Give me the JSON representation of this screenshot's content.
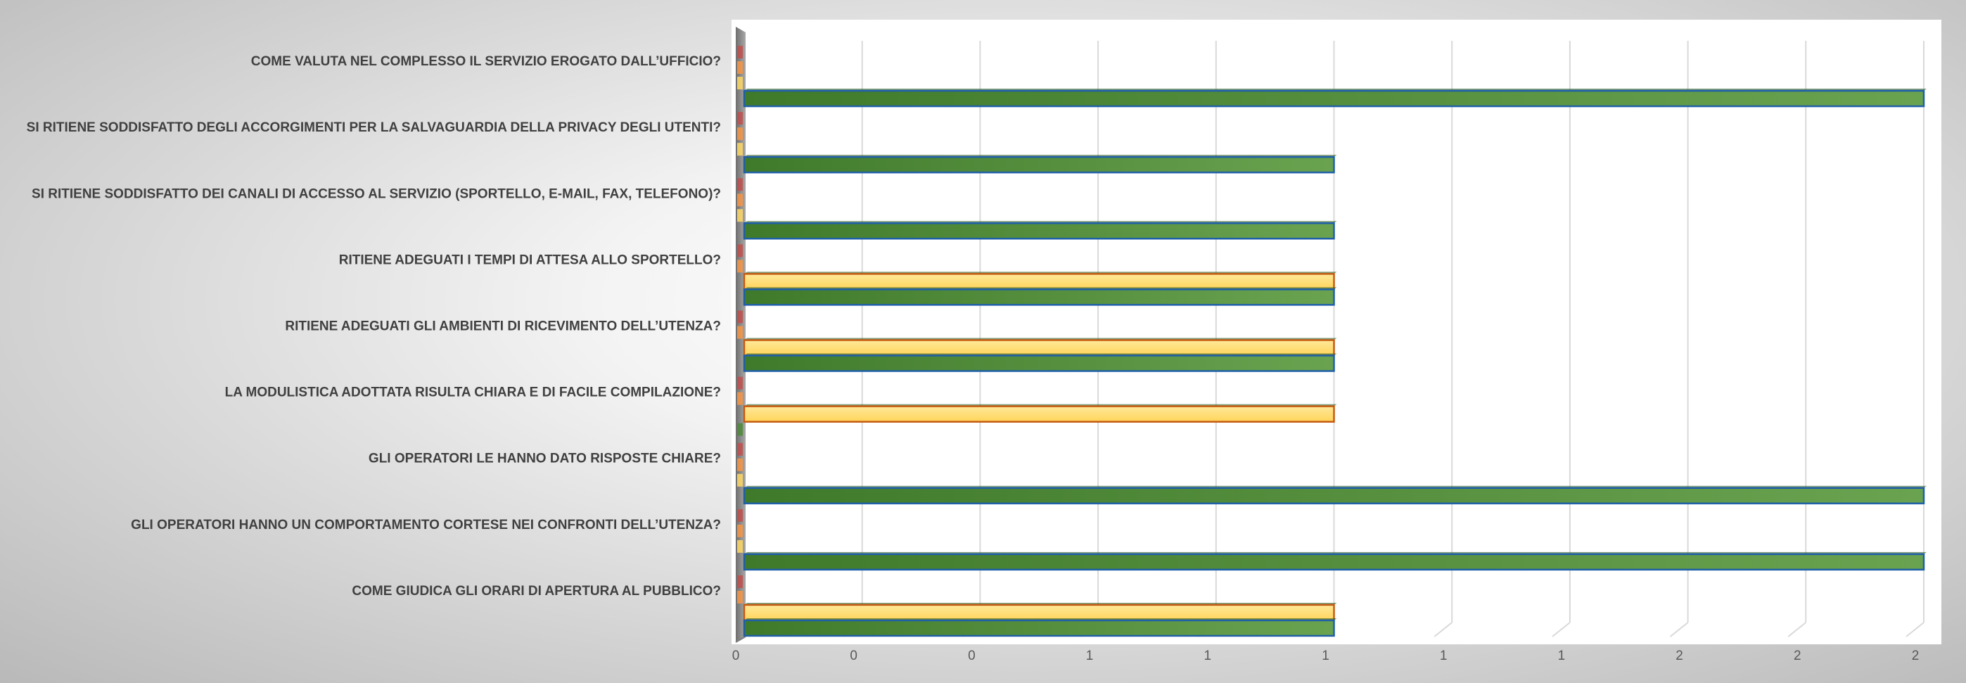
{
  "chart_data": {
    "type": "bar",
    "orientation": "horizontal",
    "title": "",
    "xlabel": "",
    "ylabel": "",
    "xlim": [
      0,
      2
    ],
    "x_tick_labels": [
      "0",
      "0",
      "0",
      "1",
      "1",
      "1",
      "1",
      "1",
      "2",
      "2",
      "2"
    ],
    "grid": true,
    "legend": "none",
    "categories": [
      "COME VALUTA NEL COMPLESSO IL SERVIZIO EROGATO DALL’UFFICIO?",
      "SI RITIENE SODDISFATTO DEGLI ACCORGIMENTI PER LA SALVAGUARDIA DELLA PRIVACY DEGLI UTENTI?",
      "SI RITIENE SODDISFATTO DEI CANALI DI ACCESSO AL SERVIZIO (SPORTELLO, E-MAIL, FAX, TELEFONO)?",
      "RITIENE ADEGUATI I TEMPI DI ATTESA ALLO SPORTELLO?",
      "RITIENE ADEGUATI GLI AMBIENTI DI RICEVIMENTO DELL’UTENZA?",
      "LA MODULISTICA ADOTTATA RISULTA CHIARA E DI FACILE COMPILAZIONE?",
      "GLI OPERATORI LE HANNO DATO RISPOSTE CHIARE?",
      "GLI OPERATORI HANNO UN COMPORTAMENTO CORTESE NEI CONFRONTI DELL’UTENZA?",
      "COME GIUDICA GLI ORARI DI APERTURA AL PUBBLICO?"
    ],
    "series": [
      {
        "color": "#c0504d",
        "values": [
          0,
          0,
          0,
          0,
          0,
          0,
          0,
          0,
          0
        ]
      },
      {
        "color": "#f79646",
        "values": [
          0,
          0,
          0,
          0,
          0,
          0,
          0,
          0,
          0
        ]
      },
      {
        "color": "#ffd966",
        "values": [
          0,
          0,
          0,
          1,
          1,
          1,
          0,
          0,
          1
        ]
      },
      {
        "color": "#4f8a3a",
        "values": [
          2,
          1,
          1,
          1,
          1,
          0,
          2,
          2,
          1
        ]
      }
    ]
  }
}
